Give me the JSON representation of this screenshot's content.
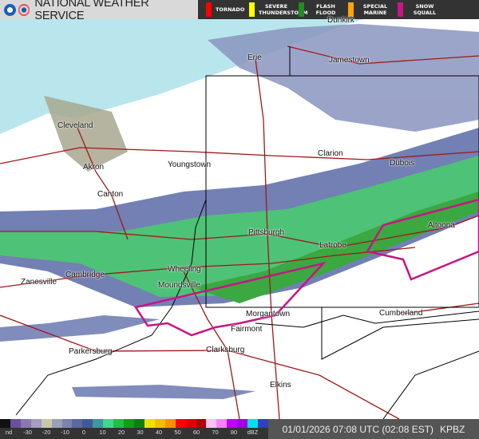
{
  "header": {
    "title": "NATIONAL WEATHER SERVICE",
    "logos": [
      "noaa-logo",
      "nws-logo"
    ]
  },
  "legend": [
    {
      "label": "TORNADO",
      "color": "#ff0000"
    },
    {
      "label": "SEVERE THUNDERSTORM",
      "color": "#ffff00"
    },
    {
      "label": "FLASH FLOOD",
      "color": "#228b22"
    },
    {
      "label": "SPECIAL MARINE",
      "color": "#ffa500"
    },
    {
      "label": "SNOW SQUALL",
      "color": "#c71585"
    }
  ],
  "scale": {
    "labels": [
      "nd",
      "-30",
      "-20",
      "-10",
      "0",
      "10",
      "20",
      "30",
      "40",
      "50",
      "60",
      "70",
      "80",
      "dBZ"
    ],
    "colors": [
      "#111",
      "#6a4f9c",
      "#8a78b0",
      "#a89cc0",
      "#c8c8a8",
      "#9aa0b8",
      "#7a84a8",
      "#5a6aa0",
      "#40589c",
      "#3a9aa0",
      "#40d890",
      "#20c040",
      "#10a010",
      "#0a8010",
      "#f0e000",
      "#f0c000",
      "#ff9000",
      "#ff0000",
      "#e00000",
      "#b00000",
      "#ffc0ff",
      "#ff80ff",
      "#c000ff",
      "#a000e0",
      "#00e0f0",
      "#3040c0"
    ]
  },
  "status": {
    "timestamp": "01/01/2026 07:08 UTC (02:08 EST)",
    "station": "KPBZ"
  },
  "cities": [
    "Dunkirk",
    "Erie",
    "Jamestown",
    "Cleveland",
    "Akron",
    "Youngstown",
    "Canton",
    "Clarion",
    "Dubois",
    "Pittsburgh",
    "Latrobe",
    "Altoona",
    "Wheeling",
    "Cambridge",
    "Zanesville",
    "Moundsville",
    "Morgantown",
    "Cumberland",
    "Fairmont",
    "Parkersburg",
    "Clarksburg",
    "Elkins"
  ]
}
